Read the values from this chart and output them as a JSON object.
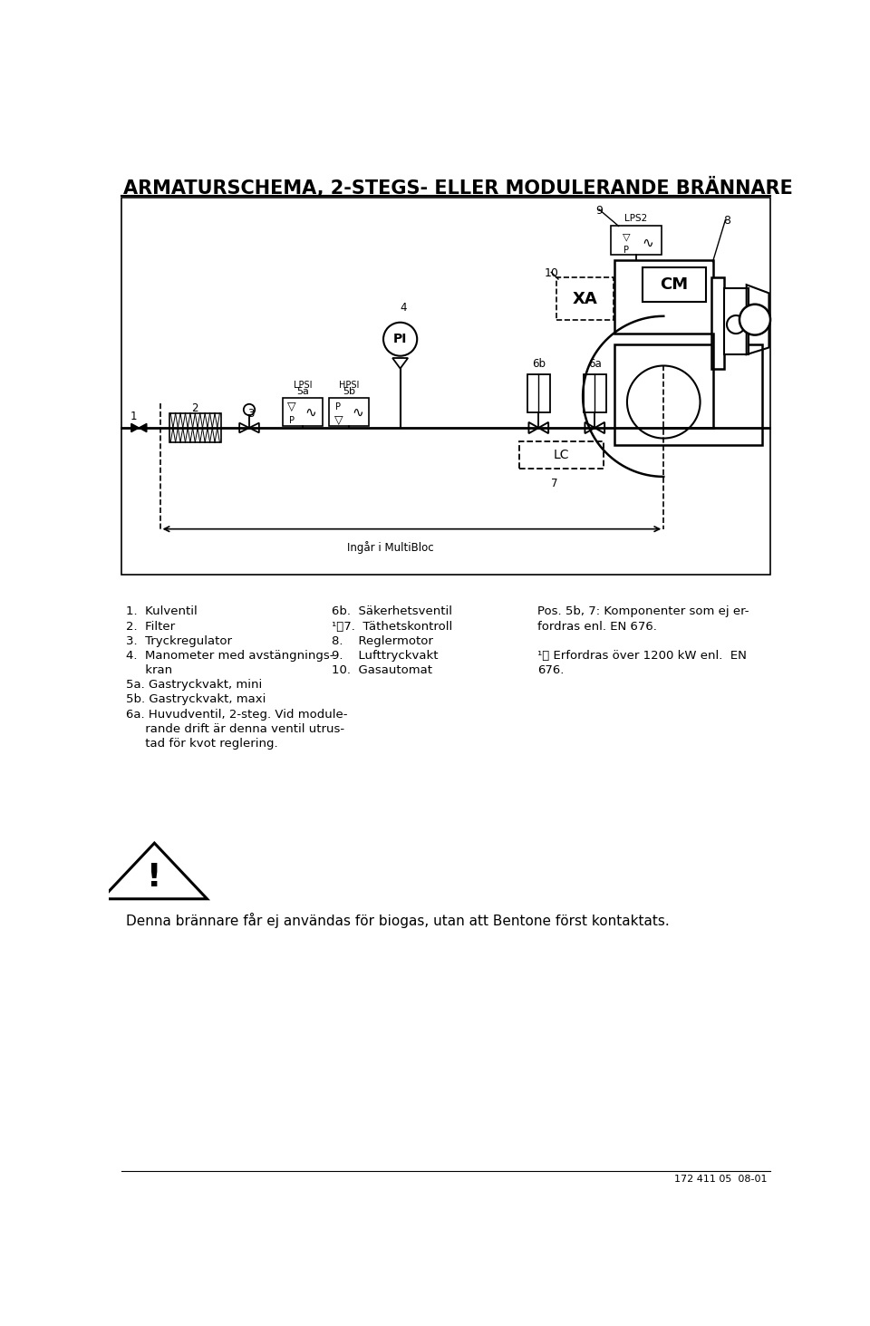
{
  "title": "ARMATURSCHEMA, 2-STEGS- ELLER MODULERANDE BRÄNNARE",
  "title_fontsize": 15,
  "bg_color": "#ffffff",
  "line_color": "#000000",
  "doc_number": "172 411 05  08-01",
  "warning_text": "Denna brännare får ej användas för biogas, utan att Bentone först kontaktats.",
  "legend_col1_lines": [
    "1.  Kulventil",
    "2.  Filter",
    "3.  Tryckregulator",
    "4.  Manometer med avstängnings-",
    "     kran",
    "5a. Gastryckvakt, mini",
    "5b. Gastryckvakt, maxi",
    "6a. Huvudventil, 2-steg. Vid module-",
    "     rande drift är denna ventil utrus-",
    "     tad för kvot reglering."
  ],
  "legend_col2_lines": [
    "6b.  Säkerhetsventil",
    "¹⧸7.  Täthetskontroll",
    "8.    Reglermotor",
    "9.    Lufttryckvakt",
    "10.  Gasautomat"
  ],
  "legend_col3_lines": [
    "Pos. 5b, 7: Komponenter som ej er-",
    "fordras enl. EN 676.",
    "",
    "¹⧸ Erfordras över 1200 kW enl.  EN",
    "676."
  ]
}
